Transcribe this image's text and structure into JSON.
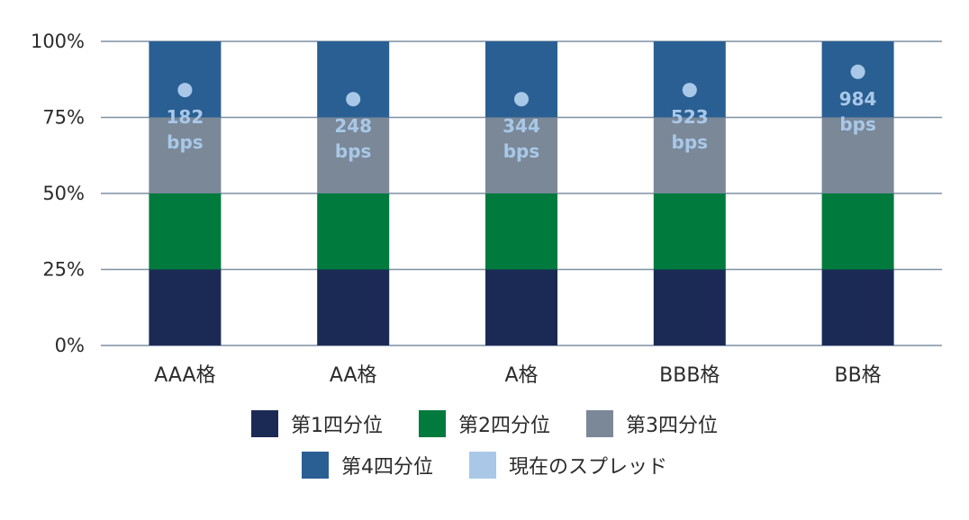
{
  "chart_data": {
    "type": "bar",
    "stacked": true,
    "categories": [
      "AAA格",
      "AA格",
      "A格",
      "BBB格",
      "BB格"
    ],
    "series": [
      {
        "name": "第1四分位",
        "values": [
          25,
          25,
          25,
          25,
          25
        ],
        "color": "#1b2a55"
      },
      {
        "name": "第2四分位",
        "values": [
          25,
          25,
          25,
          25,
          25
        ],
        "color": "#007a3d"
      },
      {
        "name": "第3四分位",
        "values": [
          25,
          25,
          25,
          25,
          25
        ],
        "color": "#7a8898"
      },
      {
        "name": "第4四分位",
        "values": [
          25,
          25,
          25,
          25,
          25
        ],
        "color": "#2a5f93"
      }
    ],
    "current_spread": {
      "name": "現在のスプレッド",
      "color": "#a9c8e8",
      "values": [
        84,
        81,
        81,
        84,
        90
      ],
      "labels": [
        "182\nbps",
        "248\nbps",
        "344\nbps",
        "523\nbps",
        "984\nbps"
      ]
    },
    "yticks": [
      "0%",
      "25%",
      "50%",
      "75%",
      "100%"
    ],
    "ylim": [
      0,
      100
    ],
    "grid": true,
    "legend_position": "bottom",
    "title": "",
    "xlabel": "",
    "ylabel": ""
  }
}
